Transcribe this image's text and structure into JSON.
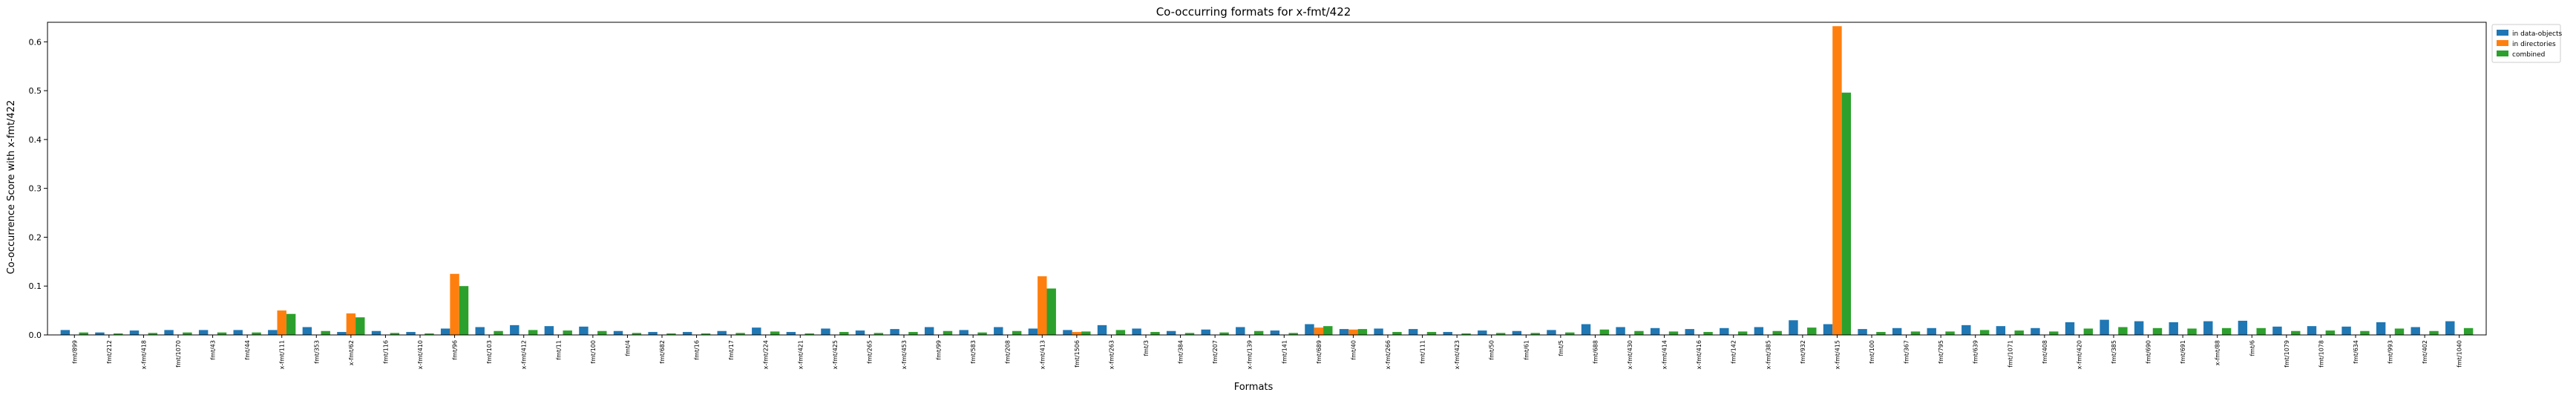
{
  "chart_data": {
    "type": "bar",
    "title": "Co-occurring formats for x-fmt/422",
    "xlabel": "Formats",
    "ylabel": "Co-occurrence Score with x-fmt/422",
    "ylim": [
      0,
      0.64
    ],
    "yticks": [
      0.0,
      0.1,
      0.2,
      0.3,
      0.4,
      0.5,
      0.6
    ],
    "ytick_labels": [
      "0.0",
      "0.1",
      "0.2",
      "0.3",
      "0.4",
      "0.5",
      "0.6"
    ],
    "grid": false,
    "legend_position": "top-right",
    "categories": [
      "fmt/899",
      "fmt/212",
      "x-fmt/418",
      "fmt/1070",
      "fmt/43",
      "fmt/44",
      "x-fmt/111",
      "fmt/353",
      "x-fmt/62",
      "fmt/116",
      "x-fmt/410",
      "fmt/96",
      "fmt/103",
      "x-fmt/412",
      "fmt/11",
      "fmt/100",
      "fmt/4",
      "fmt/682",
      "fmt/16",
      "fmt/17",
      "x-fmt/224",
      "x-fmt/421",
      "x-fmt/425",
      "fmt/265",
      "x-fmt/453",
      "fmt/99",
      "fmt/583",
      "fmt/208",
      "x-fmt/413",
      "fmt/1506",
      "x-fmt/263",
      "fmt/3",
      "fmt/384",
      "fmt/207",
      "x-fmt/139",
      "fmt/141",
      "fmt/689",
      "fmt/40",
      "x-fmt/266",
      "fmt/111",
      "x-fmt/423",
      "fmt/50",
      "fmt/61",
      "fmt/5",
      "fmt/688",
      "x-fmt/430",
      "x-fmt/414",
      "x-fmt/416",
      "fmt/142",
      "x-fmt/385",
      "fmt/932",
      "x-fmt/415",
      "fmt/100",
      "fmt/367",
      "fmt/795",
      "fmt/639",
      "fmt/1071",
      "fmt/408",
      "x-fmt/420",
      "fmt/385",
      "fmt/690",
      "fmt/691",
      "x-fmt/88",
      "fmt/6",
      "fmt/1079",
      "fmt/1078",
      "fmt/634",
      "fmt/993",
      "fmt/402",
      "fmt/1040"
    ],
    "series": [
      {
        "name": "in data-objects",
        "color": "#1f77b4",
        "values": [
          0.01,
          0.005,
          0.009,
          0.01,
          0.01,
          0.01,
          0.01,
          0.016,
          0.006,
          0.008,
          0.006,
          0.013,
          0.016,
          0.02,
          0.018,
          0.017,
          0.008,
          0.006,
          0.006,
          0.008,
          0.015,
          0.006,
          0.013,
          0.009,
          0.012,
          0.016,
          0.01,
          0.016,
          0.013,
          0.01,
          0.02,
          0.013,
          0.008,
          0.011,
          0.016,
          0.009,
          0.022,
          0.012,
          0.013,
          0.012,
          0.006,
          0.009,
          0.008,
          0.01,
          0.022,
          0.016,
          0.014,
          0.012,
          0.014,
          0.016,
          0.03,
          0.022,
          0.012,
          0.014,
          0.014,
          0.02,
          0.018,
          0.014,
          0.026,
          0.031,
          0.028,
          0.026,
          0.028,
          0.029,
          0.017,
          0.018,
          0.017,
          0.026,
          0.016,
          0.028
        ]
      },
      {
        "name": "in directories",
        "color": "#ff7f0e",
        "values": [
          0,
          0,
          0,
          0,
          0,
          0,
          0.05,
          0,
          0.044,
          0,
          0,
          0.125,
          0,
          0,
          0,
          0,
          0,
          0,
          0,
          0,
          0,
          0,
          0,
          0,
          0,
          0,
          0,
          0,
          0.12,
          0.006,
          0,
          0,
          0,
          0,
          0,
          0,
          0.015,
          0.011,
          0,
          0,
          0,
          0,
          0,
          0,
          0,
          0,
          0,
          0,
          0,
          0,
          0,
          0.632,
          0,
          0,
          0,
          0,
          0,
          0,
          0,
          0,
          0,
          0,
          0,
          0,
          0,
          0,
          0,
          0,
          0,
          0
        ]
      },
      {
        "name": "combined",
        "color": "#2ca02c",
        "values": [
          0.005,
          0.003,
          0.004,
          0.005,
          0.005,
          0.005,
          0.043,
          0.008,
          0.036,
          0.004,
          0.003,
          0.1,
          0.008,
          0.01,
          0.009,
          0.008,
          0.004,
          0.003,
          0.003,
          0.004,
          0.007,
          0.003,
          0.006,
          0.004,
          0.006,
          0.008,
          0.005,
          0.008,
          0.095,
          0.007,
          0.01,
          0.006,
          0.004,
          0.005,
          0.008,
          0.004,
          0.018,
          0.012,
          0.006,
          0.006,
          0.003,
          0.004,
          0.004,
          0.005,
          0.011,
          0.008,
          0.007,
          0.006,
          0.007,
          0.008,
          0.015,
          0.496,
          0.006,
          0.007,
          0.007,
          0.01,
          0.009,
          0.007,
          0.013,
          0.016,
          0.014,
          0.013,
          0.014,
          0.014,
          0.008,
          0.009,
          0.008,
          0.013,
          0.008,
          0.014
        ]
      }
    ]
  }
}
